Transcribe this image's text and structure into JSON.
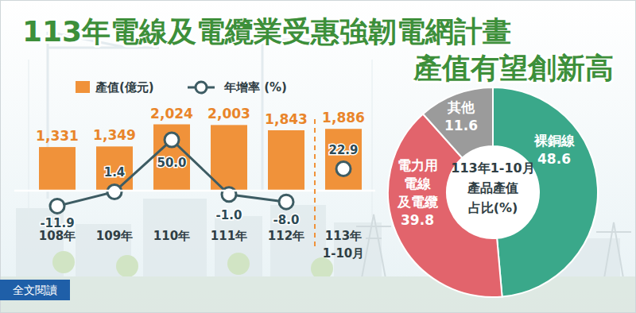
{
  "title": [
    "113年電線及電纜業受惠強韌電網計畫",
    "產值有望創新高"
  ],
  "button": "全文閱讀",
  "chart_data": [
    {
      "type": "bar",
      "categories": [
        "108年",
        "109年",
        "110年",
        "111年",
        "112年",
        "113年\n1-10月"
      ],
      "series": [
        {
          "name": "產值(億元)",
          "type": "bar",
          "color": "#f0923a",
          "values": [
            1331,
            1349,
            2024,
            2003,
            1843,
            1886
          ],
          "value_labels": [
            "1,331",
            "1,349",
            "2,024",
            "2,003",
            "1,843",
            "1,886"
          ]
        },
        {
          "name": "年增率 (%)",
          "type": "line",
          "axis": "y2",
          "color": "#3d5c63",
          "marker": "circle",
          "values": [
            -11.9,
            1.4,
            50.0,
            -1.0,
            -8.0,
            22.9
          ],
          "value_labels": [
            "-11.9",
            "1.4",
            "50.0",
            "-1.0",
            "-8.0",
            "22.9"
          ]
        }
      ],
      "ylim": [
        -800,
        4000
      ],
      "yticks": [],
      "y2lim": [
        -22,
        125
      ],
      "y2ticks": [],
      "tick_labels": "x",
      "data_labels": true,
      "legend": "top"
    },
    {
      "type": "pie",
      "title": "113年1-10月\n產品產值\n占比(%)",
      "categories": [
        "裸銅線",
        "電力用\n電線\n及電纜",
        "其他"
      ],
      "values": [
        48.6,
        39.8,
        11.6
      ],
      "colors": [
        "#3aa88a",
        "#e2646c",
        "#9b9b9b"
      ],
      "data_labels": true
    }
  ]
}
